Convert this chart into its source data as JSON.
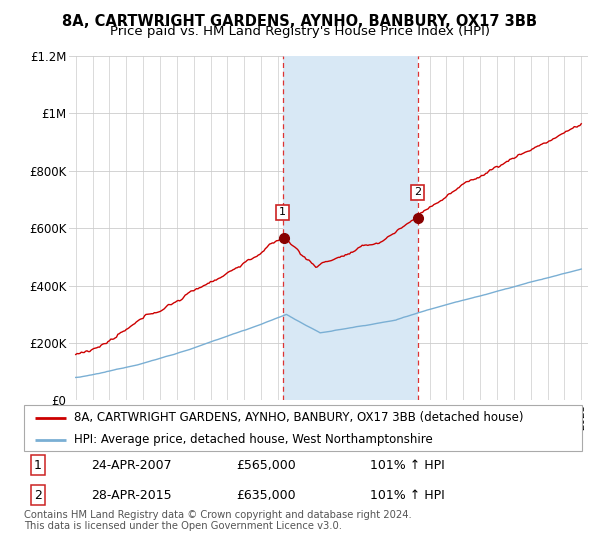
{
  "title": "8A, CARTWRIGHT GARDENS, AYNHO, BANBURY, OX17 3BB",
  "subtitle": "Price paid vs. HM Land Registry's House Price Index (HPI)",
  "ylim": [
    0,
    1200000
  ],
  "yticks": [
    0,
    200000,
    400000,
    600000,
    800000,
    1000000,
    1200000
  ],
  "ytick_labels": [
    "£0",
    "£200K",
    "£400K",
    "£600K",
    "£800K",
    "£1M",
    "£1.2M"
  ],
  "red_line_color": "#cc0000",
  "blue_line_color": "#7aafd4",
  "grid_color": "#cccccc",
  "shading_color": "#d8e8f5",
  "purchase1_year": 2007.32,
  "purchase1_value": 565000,
  "purchase2_year": 2015.33,
  "purchase2_value": 635000,
  "legend_entry1": "8A, CARTWRIGHT GARDENS, AYNHO, BANBURY, OX17 3BB (detached house)",
  "legend_entry2": "HPI: Average price, detached house, West Northamptonshire",
  "table_row1": [
    "1",
    "24-APR-2007",
    "£565,000",
    "101% ↑ HPI"
  ],
  "table_row2": [
    "2",
    "28-APR-2015",
    "£635,000",
    "101% ↑ HPI"
  ],
  "footnote": "Contains HM Land Registry data © Crown copyright and database right 2024.\nThis data is licensed under the Open Government Licence v3.0.",
  "title_fontsize": 10.5,
  "subtitle_fontsize": 9.5,
  "axis_fontsize": 8.5,
  "legend_fontsize": 8.5
}
